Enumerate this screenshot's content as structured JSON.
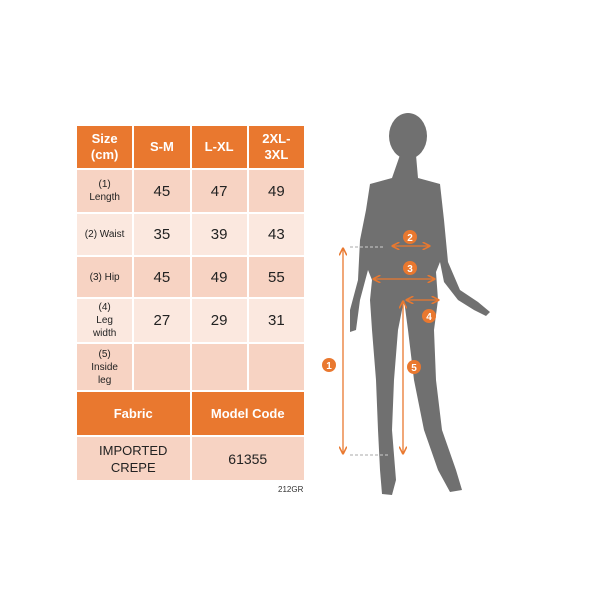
{
  "table": {
    "header": [
      "Size (cm)",
      "S-M",
      "L-XL",
      "2XL-3XL"
    ],
    "rows": [
      {
        "label": "(1) Length",
        "values": [
          "45",
          "47",
          "49"
        ]
      },
      {
        "label": "(2) Waist",
        "values": [
          "35",
          "39",
          "43"
        ]
      },
      {
        "label": "(3) Hip",
        "values": [
          "45",
          "49",
          "55"
        ]
      },
      {
        "label": "(4) Leg width",
        "values": [
          "27",
          "29",
          "31"
        ]
      },
      {
        "label": "(5) Inside leg",
        "values": [
          "",
          "",
          ""
        ]
      }
    ],
    "fabric_label": "Fabric",
    "model_code_label": "Model Code",
    "fabric": "IMPORTED CREPE",
    "model_code": "61355"
  },
  "code_label": "212GR",
  "figure": {
    "markers": [
      "1",
      "2",
      "3",
      "4",
      "5"
    ]
  },
  "colors": {
    "accent": "#e9782f",
    "cell_dark": "#f7d3c3",
    "cell_light": "#fbe8df",
    "silhouette": "#707070"
  }
}
